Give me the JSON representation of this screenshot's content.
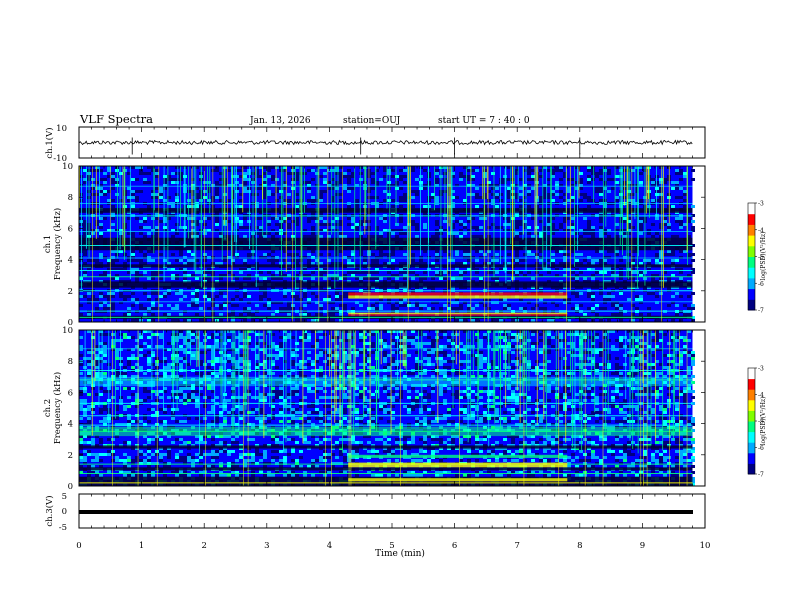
{
  "header": {
    "title": "VLF Spectra",
    "date": "Jan. 13, 2026",
    "station": "station=OUJ",
    "start": "start UT =  7 : 40 : 0"
  },
  "chart_data": {
    "type": "heatmap",
    "x": {
      "label": "Time (min)",
      "range": [
        0,
        10
      ],
      "ticks": [
        "0",
        "1",
        "2",
        "3",
        "4",
        "5",
        "6",
        "7",
        "8",
        "9",
        "10"
      ]
    },
    "panels": [
      {
        "id": "ch1-waveform",
        "type": "line",
        "ylabel": "ch.1(V)",
        "ylim": [
          -10,
          10
        ],
        "yticks": [
          "10",
          "-10"
        ],
        "baseline": 0,
        "color": "#000000"
      },
      {
        "id": "ch1-spectrogram",
        "type": "heatmap",
        "ylabel_top": "ch.1",
        "ylabel": "Frequency (kHz)",
        "ylim": [
          0,
          10
        ],
        "yticks": [
          "0",
          "2",
          "4",
          "6",
          "8",
          "10"
        ],
        "colorbar": {
          "label": "log(PSD)(V²/Hz)",
          "range": [
            -7,
            -3
          ],
          "ticks": [
            "-3",
            "-4",
            "-5",
            "-6",
            "-7"
          ]
        }
      },
      {
        "id": "ch2-spectrogram",
        "type": "heatmap",
        "ylabel_top": "ch.2",
        "ylabel": "Frequency (kHz)",
        "ylim": [
          0,
          10
        ],
        "yticks": [
          "0",
          "2",
          "4",
          "6",
          "8",
          "10"
        ],
        "colorbar": {
          "label": "log(PSD)(V²/Hz)",
          "range": [
            -7,
            -3
          ],
          "ticks": [
            "-3",
            "-4",
            "-5",
            "-6",
            "-7"
          ]
        }
      },
      {
        "id": "ch3-waveform",
        "type": "line",
        "ylabel": "ch.3(V)",
        "ylim": [
          -5,
          5
        ],
        "yticks": [
          "5",
          "0",
          "-5"
        ],
        "baseline": 0,
        "color": "#000000"
      }
    ],
    "colormap": [
      "#000080",
      "#0000ff",
      "#00aaff",
      "#00ffff",
      "#00ff80",
      "#ffff00",
      "#ff8000",
      "#ff0000",
      "#ff80ff",
      "#ffffff"
    ]
  }
}
